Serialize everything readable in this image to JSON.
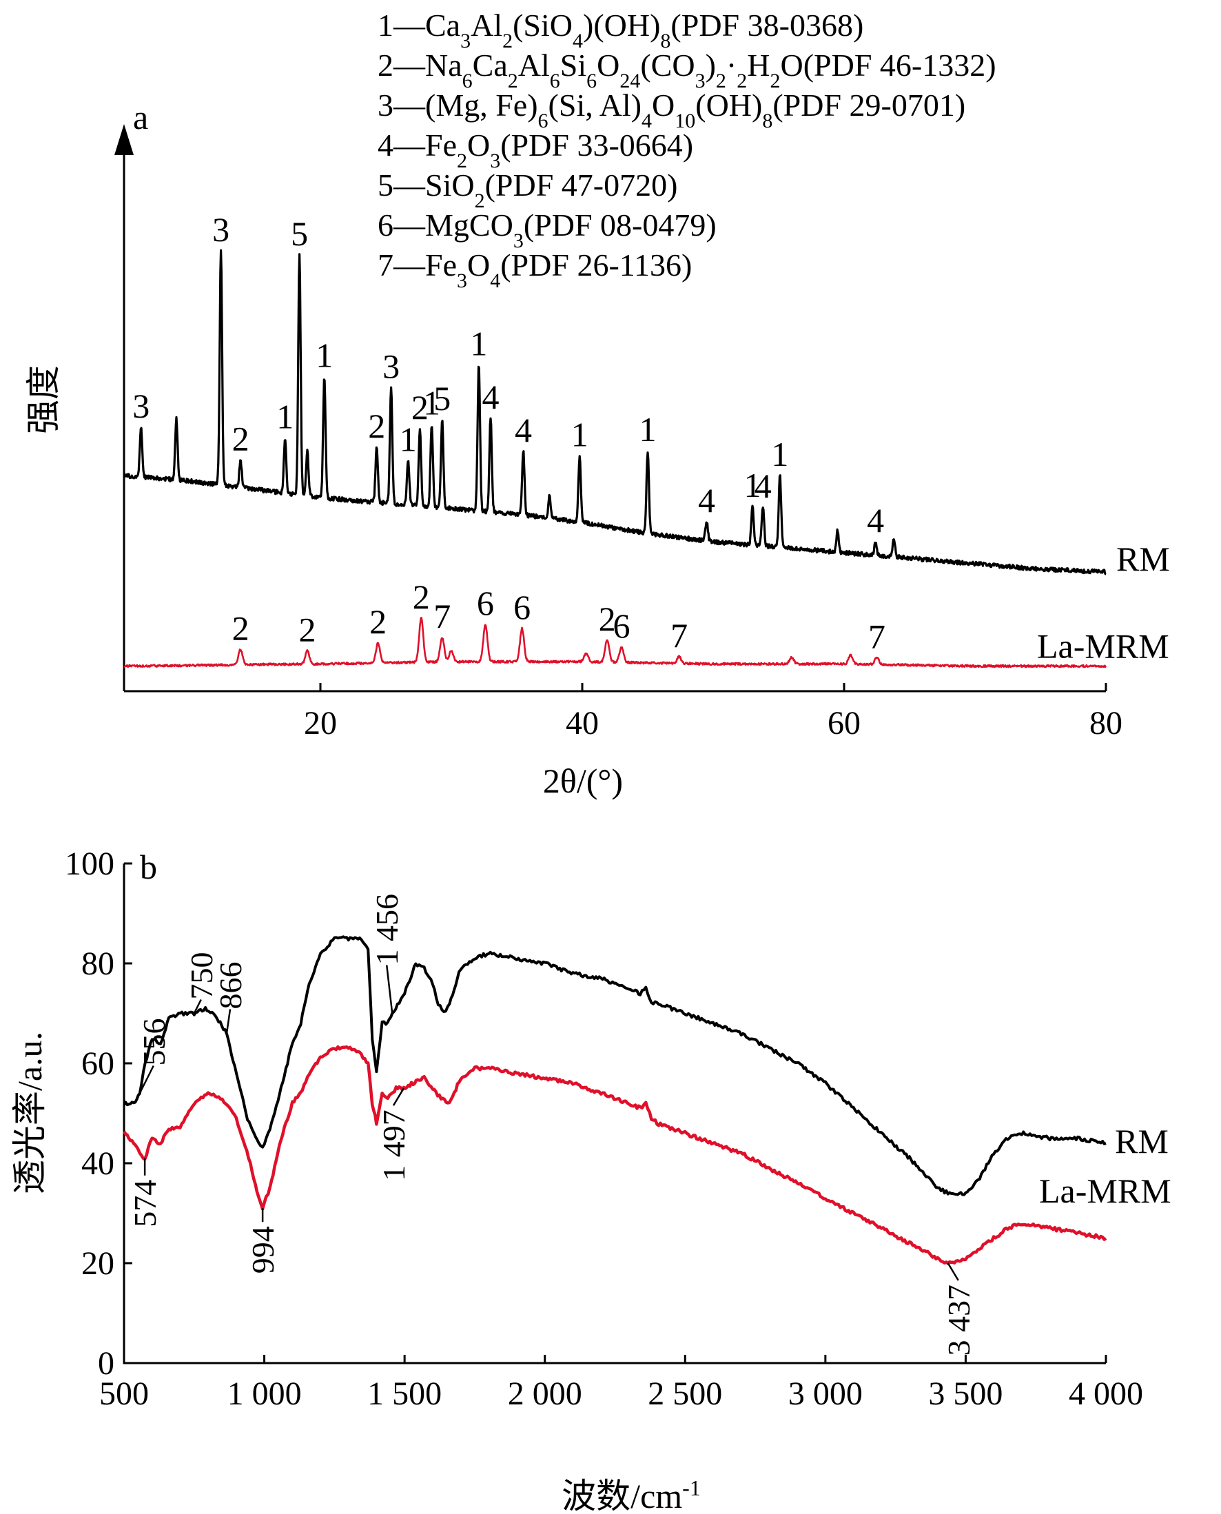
{
  "colors": {
    "rm": "#000000",
    "la_mrm": "#e0102a",
    "axis": "#000000"
  },
  "chart_data": [
    {
      "panel": "a",
      "type": "line",
      "xlabel": "2θ/(°)",
      "ylabel": "强度",
      "xlim": [
        5,
        80
      ],
      "xticks": [
        20,
        40,
        60,
        80
      ],
      "y_tick_labels": false,
      "legend": [
        {
          "num": "1",
          "formula": "Ca3Al2(SiO4)(OH)8",
          "pdf": "(PDF 38-0368)"
        },
        {
          "num": "2",
          "formula": "Na6Ca2Al6Si6O24(CO3)2·2H2O",
          "pdf": "(PDF 46-1332)"
        },
        {
          "num": "3",
          "formula": "(Mg, Fe)6(Si, Al)4O10(OH)8",
          "pdf": "(PDF 29-0701)"
        },
        {
          "num": "4",
          "formula": "Fe2O3",
          "pdf": "(PDF 33-0664)"
        },
        {
          "num": "5",
          "formula": "SiO2",
          "pdf": "(PDF 47-0720)"
        },
        {
          "num": "6",
          "formula": "MgCO3",
          "pdf": "(PDF 08-0479)"
        },
        {
          "num": "7",
          "formula": "Fe3O4",
          "pdf": "(PDF 26-1136)"
        }
      ],
      "series": [
        {
          "name": "RM",
          "color": "#000000",
          "baseline": [
            [
              5,
              40
            ],
            [
              10,
              38
            ],
            [
              15,
              35
            ],
            [
              20,
              32
            ],
            [
              25,
              30
            ],
            [
              30,
              28
            ],
            [
              35,
              26
            ],
            [
              40,
              23
            ],
            [
              45,
              19
            ],
            [
              50,
              16
            ],
            [
              55,
              14
            ],
            [
              60,
              12
            ],
            [
              65,
              10
            ],
            [
              70,
              8
            ],
            [
              75,
              6
            ],
            [
              80,
              5
            ]
          ],
          "peaks": [
            {
              "x": 6.3,
              "h": 18,
              "label": "3"
            },
            {
              "x": 9.0,
              "h": 22,
              "label": ""
            },
            {
              "x": 12.4,
              "h": 85,
              "label": "3"
            },
            {
              "x": 13.9,
              "h": 10,
              "label": "2"
            },
            {
              "x": 17.3,
              "h": 20,
              "label": "1"
            },
            {
              "x": 18.4,
              "h": 87,
              "label": "5"
            },
            {
              "x": 19.0,
              "h": 16,
              "label": ""
            },
            {
              "x": 20.3,
              "h": 44,
              "label": "1"
            },
            {
              "x": 24.3,
              "h": 20,
              "label": "2"
            },
            {
              "x": 25.4,
              "h": 42,
              "label": "3"
            },
            {
              "x": 26.7,
              "h": 16,
              "label": "1"
            },
            {
              "x": 27.6,
              "h": 28,
              "label": "2"
            },
            {
              "x": 28.5,
              "h": 30,
              "label": "1"
            },
            {
              "x": 29.3,
              "h": 32,
              "label": "5"
            },
            {
              "x": 32.1,
              "h": 53,
              "label": "1"
            },
            {
              "x": 33.0,
              "h": 34,
              "label": "4"
            },
            {
              "x": 35.5,
              "h": 23,
              "label": "4"
            },
            {
              "x": 37.5,
              "h": 8,
              "label": ""
            },
            {
              "x": 39.8,
              "h": 24,
              "label": "1"
            },
            {
              "x": 45.0,
              "h": 30,
              "label": "1"
            },
            {
              "x": 49.5,
              "h": 7,
              "label": "4"
            },
            {
              "x": 53.0,
              "h": 14,
              "label": "1"
            },
            {
              "x": 53.8,
              "h": 14,
              "label": "4"
            },
            {
              "x": 55.1,
              "h": 26,
              "label": "1"
            },
            {
              "x": 59.5,
              "h": 8,
              "label": ""
            },
            {
              "x": 62.4,
              "h": 5,
              "label": "4"
            },
            {
              "x": 63.8,
              "h": 7,
              "label": ""
            }
          ]
        },
        {
          "name": "La-MRM",
          "color": "#e0102a",
          "baseline": [
            [
              5,
              2
            ],
            [
              20,
              3
            ],
            [
              30,
              4
            ],
            [
              40,
              4
            ],
            [
              50,
              3
            ],
            [
              60,
              3
            ],
            [
              70,
              2
            ],
            [
              80,
              2
            ]
          ],
          "peaks": [
            {
              "x": 13.9,
              "h": 7,
              "label": "2"
            },
            {
              "x": 19.0,
              "h": 6,
              "label": "2"
            },
            {
              "x": 24.4,
              "h": 9,
              "label": "2"
            },
            {
              "x": 27.7,
              "h": 20,
              "label": "2"
            },
            {
              "x": 29.3,
              "h": 11,
              "label": "7"
            },
            {
              "x": 30.0,
              "h": 5,
              "label": ""
            },
            {
              "x": 32.6,
              "h": 17,
              "label": "6"
            },
            {
              "x": 35.4,
              "h": 15,
              "label": "6"
            },
            {
              "x": 40.3,
              "h": 4,
              "label": ""
            },
            {
              "x": 41.9,
              "h": 10,
              "label": "2"
            },
            {
              "x": 43.0,
              "h": 7,
              "label": "6"
            },
            {
              "x": 47.4,
              "h": 3,
              "label": "7"
            },
            {
              "x": 56.0,
              "h": 3,
              "label": ""
            },
            {
              "x": 60.5,
              "h": 4,
              "label": ""
            },
            {
              "x": 62.5,
              "h": 3,
              "label": "7"
            }
          ]
        }
      ]
    },
    {
      "panel": "b",
      "type": "line",
      "xlabel": "波数/cm-1",
      "ylabel": "透光率/a.u.",
      "xlim": [
        500,
        4000
      ],
      "ylim": [
        0,
        100
      ],
      "xticks": [
        500,
        1000,
        1500,
        2000,
        2500,
        3000,
        3500,
        4000
      ],
      "xtick_labels": [
        "500",
        "1 000",
        "1 500",
        "2 000",
        "2 500",
        "3 000",
        "3 500",
        "4 000"
      ],
      "yticks": [
        0,
        20,
        40,
        60,
        80,
        100
      ],
      "ytick_labels": [
        "0",
        "20",
        "40",
        "60",
        "80",
        "100"
      ],
      "series": [
        {
          "name": "RM",
          "color": "#000000",
          "points": [
            [
              500,
              52
            ],
            [
              540,
              52
            ],
            [
              556,
              54
            ],
            [
              575,
              60
            ],
            [
              600,
              65
            ],
            [
              630,
              64
            ],
            [
              660,
              69
            ],
            [
              700,
              70
            ],
            [
              750,
              70
            ],
            [
              790,
              71
            ],
            [
              820,
              70
            ],
            [
              866,
              66
            ],
            [
              900,
              58
            ],
            [
              940,
              49
            ],
            [
              980,
              44
            ],
            [
              994,
              43
            ],
            [
              1020,
              47
            ],
            [
              1060,
              55
            ],
            [
              1100,
              64
            ],
            [
              1130,
              68
            ],
            [
              1160,
              76
            ],
            [
              1200,
              82
            ],
            [
              1250,
              85
            ],
            [
              1300,
              85
            ],
            [
              1340,
              85
            ],
            [
              1370,
              83
            ],
            [
              1385,
              65
            ],
            [
              1400,
              58
            ],
            [
              1420,
              68
            ],
            [
              1440,
              68
            ],
            [
              1456,
              70
            ],
            [
              1500,
              74
            ],
            [
              1540,
              80
            ],
            [
              1570,
              79
            ],
            [
              1600,
              76
            ],
            [
              1620,
              72
            ],
            [
              1640,
              70
            ],
            [
              1660,
              72
            ],
            [
              1700,
              79
            ],
            [
              1750,
              81
            ],
            [
              1800,
              82
            ],
            [
              1900,
              81
            ],
            [
              2000,
              80
            ],
            [
              2100,
              78
            ],
            [
              2200,
              77
            ],
            [
              2300,
              75
            ],
            [
              2340,
              74
            ],
            [
              2360,
              75
            ],
            [
              2380,
              72
            ],
            [
              2400,
              72
            ],
            [
              2500,
              70
            ],
            [
              2600,
              68
            ],
            [
              2700,
              66
            ],
            [
              2800,
              63
            ],
            [
              2900,
              60
            ],
            [
              3000,
              56
            ],
            [
              3100,
              51
            ],
            [
              3200,
              46
            ],
            [
              3300,
              41
            ],
            [
              3400,
              35
            ],
            [
              3437,
              34
            ],
            [
              3500,
              34
            ],
            [
              3550,
              37
            ],
            [
              3600,
              42
            ],
            [
              3650,
              45
            ],
            [
              3700,
              46
            ],
            [
              3800,
              45
            ],
            [
              3900,
              45
            ],
            [
              4000,
              44
            ]
          ]
        },
        {
          "name": "La-MRM",
          "color": "#e0102a",
          "points": [
            [
              500,
              46
            ],
            [
              540,
              44
            ],
            [
              556,
              42
            ],
            [
              574,
              41
            ],
            [
              600,
              45
            ],
            [
              630,
              44
            ],
            [
              660,
              47
            ],
            [
              700,
              47
            ],
            [
              750,
              52
            ],
            [
              800,
              54
            ],
            [
              850,
              53
            ],
            [
              900,
              49
            ],
            [
              950,
              40
            ],
            [
              980,
              33
            ],
            [
              994,
              31
            ],
            [
              1020,
              35
            ],
            [
              1060,
              45
            ],
            [
              1100,
              52
            ],
            [
              1130,
              54
            ],
            [
              1160,
              58
            ],
            [
              1200,
              61
            ],
            [
              1250,
              63
            ],
            [
              1300,
              63
            ],
            [
              1340,
              62
            ],
            [
              1370,
              60
            ],
            [
              1385,
              52
            ],
            [
              1400,
              48
            ],
            [
              1420,
              54
            ],
            [
              1440,
              53
            ],
            [
              1470,
              55
            ],
            [
              1497,
              55
            ],
            [
              1530,
              56
            ],
            [
              1570,
              57
            ],
            [
              1600,
              55
            ],
            [
              1630,
              53
            ],
            [
              1660,
              52
            ],
            [
              1700,
              57
            ],
            [
              1750,
              59
            ],
            [
              1800,
              59
            ],
            [
              1900,
              58
            ],
            [
              2000,
              57
            ],
            [
              2100,
              56
            ],
            [
              2200,
              54
            ],
            [
              2300,
              52
            ],
            [
              2340,
              51
            ],
            [
              2360,
              52
            ],
            [
              2380,
              49
            ],
            [
              2400,
              48
            ],
            [
              2500,
              46
            ],
            [
              2600,
              44
            ],
            [
              2700,
              42
            ],
            [
              2800,
              39
            ],
            [
              2900,
              36
            ],
            [
              3000,
              33
            ],
            [
              3100,
              30
            ],
            [
              3200,
              27
            ],
            [
              3300,
              24
            ],
            [
              3400,
              21
            ],
            [
              3437,
              20
            ],
            [
              3500,
              21
            ],
            [
              3550,
              23
            ],
            [
              3600,
              25
            ],
            [
              3650,
              27
            ],
            [
              3700,
              28
            ],
            [
              3800,
              27
            ],
            [
              3900,
              26
            ],
            [
              4000,
              25
            ]
          ]
        }
      ],
      "annotations": [
        {
          "text": "556",
          "series": "RM",
          "x": 556
        },
        {
          "text": "750",
          "series": "RM",
          "x": 750
        },
        {
          "text": "866",
          "series": "RM",
          "x": 866
        },
        {
          "text": "1 456",
          "series": "RM",
          "x": 1456
        },
        {
          "text": "574",
          "series": "La-MRM",
          "x": 574
        },
        {
          "text": "994",
          "series": "La-MRM",
          "x": 994
        },
        {
          "text": "1 497",
          "series": "La-MRM",
          "x": 1497
        },
        {
          "text": "3 437",
          "series": "La-MRM",
          "x": 3437
        }
      ]
    }
  ]
}
